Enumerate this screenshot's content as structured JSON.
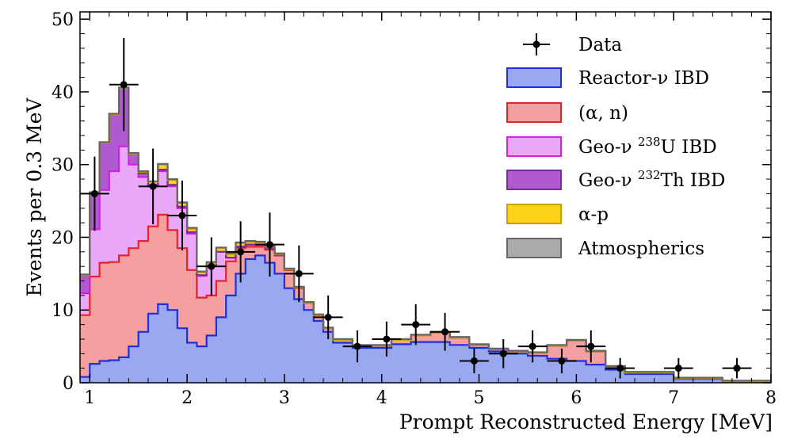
{
  "chart_data": {
    "type": "stacked-step-histogram",
    "title": "",
    "xlabel": "Prompt Reconstructed Energy [MeV]",
    "ylabel": "Events per 0.3 MeV",
    "xlim": [
      0.9,
      8.0
    ],
    "ylim": [
      0,
      51
    ],
    "x_ticks": [
      1,
      2,
      3,
      4,
      5,
      6,
      7,
      8
    ],
    "y_ticks": [
      0,
      10,
      20,
      30,
      40,
      50
    ],
    "legend_position": "top-right",
    "x_grid": [
      0.9,
      1.0,
      1.1,
      1.2,
      1.3,
      1.4,
      1.5,
      1.6,
      1.7,
      1.8,
      1.9,
      2.0,
      2.1,
      2.2,
      2.3,
      2.4,
      2.5,
      2.6,
      2.7,
      2.8,
      2.9,
      3.0,
      3.1,
      3.2,
      3.3,
      3.4,
      3.5,
      3.7,
      3.9,
      4.1,
      4.3,
      4.5,
      4.7,
      4.9,
      5.1,
      5.3,
      5.5,
      5.7,
      5.9,
      6.1,
      6.3,
      6.5,
      7.0,
      7.5,
      8.0
    ],
    "series": [
      {
        "name": "Reactor-ν IBD",
        "fill": "#9aa8f0",
        "edge": "#1f2fe0",
        "values": [
          0.8,
          2.6,
          3.0,
          3.1,
          3.5,
          5.0,
          7.0,
          9.5,
          10.8,
          10.0,
          7.5,
          5.5,
          5.0,
          6.5,
          9.0,
          12.0,
          15.0,
          17.0,
          17.5,
          16.5,
          15.0,
          13.0,
          11.5,
          10.0,
          8.5,
          7.0,
          5.5,
          4.8,
          4.8,
          5.3,
          5.6,
          5.6,
          5.2,
          4.8,
          4.3,
          4.0,
          3.7,
          3.3,
          3.0,
          2.5,
          1.8,
          1.2,
          0.5,
          0.15
        ]
      },
      {
        "name": "(α, n)",
        "fill": "#f5a0a0",
        "edge": "#e8202a",
        "values": [
          8.5,
          12.0,
          13.5,
          13.5,
          14.0,
          13.5,
          12.5,
          12.0,
          12.3,
          11.0,
          11.0,
          10.0,
          6.7,
          5.5,
          5.0,
          4.7,
          3.5,
          1.7,
          1.2,
          1.8,
          2.5,
          2.5,
          1.5,
          1.0,
          0.8,
          0.5,
          0.4,
          0.3,
          0.3,
          0.6,
          0.9,
          1.3,
          1.0,
          0.4,
          0.3,
          0.3,
          0.4,
          1.8,
          2.8,
          1.8,
          0.4,
          0.2,
          0.1,
          0.03
        ]
      },
      {
        "name": "Geo-ν ²³⁸U IBD",
        "fill": "#eaa8f8",
        "edge": "#d31ee8",
        "values": [
          3.0,
          6.5,
          10.0,
          12.5,
          15.0,
          11.5,
          8.8,
          5.5,
          6.0,
          6.0,
          5.5,
          5.0,
          3.0,
          4.0,
          4.0,
          0.5,
          0.2,
          0.3,
          0.3,
          0.2,
          0.1,
          0.1,
          0.1,
          0,
          0,
          0,
          0,
          0,
          0,
          0,
          0,
          0,
          0,
          0,
          0,
          0,
          0,
          0,
          0,
          0,
          0,
          0,
          0,
          0
        ]
      },
      {
        "name": "Geo-ν ²³²Th IBD",
        "fill": "#b05ad0",
        "edge": "#7a2a99",
        "values": [
          2.5,
          5.0,
          6.5,
          7.8,
          8.0,
          1.5,
          0.5,
          0.2,
          0.2,
          0.2,
          0.2,
          0.2,
          0.1,
          0.1,
          0,
          0,
          0,
          0,
          0,
          0,
          0,
          0,
          0,
          0,
          0,
          0,
          0,
          0,
          0,
          0,
          0,
          0,
          0,
          0,
          0,
          0,
          0,
          0,
          0,
          0,
          0,
          0,
          0,
          0
        ]
      },
      {
        "name": "α-p",
        "fill": "#ffd21a",
        "edge": "#c8a000",
        "values": [
          0,
          0,
          0,
          0,
          0,
          0,
          0.2,
          0.4,
          0.7,
          0.7,
          0.5,
          0.5,
          0.4,
          0.4,
          0.5,
          0.5,
          0.5,
          0.4,
          0.3,
          0.2,
          0.1,
          0,
          0,
          0,
          0,
          0,
          0,
          0,
          0,
          0,
          0,
          0,
          0,
          0,
          0,
          0,
          0,
          0,
          0,
          0,
          0,
          0,
          0,
          0
        ]
      },
      {
        "name": "Atmospherics",
        "fill": "#aaaaaa",
        "edge": "#666666",
        "values": [
          0.1,
          0.1,
          0.1,
          0.1,
          0.1,
          0.1,
          0.1,
          0.1,
          0.1,
          0.1,
          0.1,
          0.1,
          0.1,
          0.1,
          0.1,
          0.1,
          0.1,
          0.1,
          0.1,
          0.1,
          0.1,
          0.1,
          0.1,
          0.1,
          0.1,
          0.1,
          0.1,
          0.1,
          0.1,
          0.1,
          0.1,
          0.1,
          0.1,
          0.1,
          0.1,
          0.1,
          0.1,
          0.1,
          0.1,
          0.1,
          0.1,
          0.1,
          0.1,
          0.1
        ]
      }
    ],
    "data_points": {
      "name": "Data",
      "x": [
        1.05,
        1.35,
        1.65,
        1.95,
        2.25,
        2.55,
        2.85,
        3.15,
        3.45,
        3.75,
        4.05,
        4.35,
        4.65,
        4.95,
        5.25,
        5.55,
        5.85,
        6.15,
        6.45,
        7.05,
        7.65
      ],
      "y": [
        26,
        41,
        27,
        23,
        16,
        18,
        19,
        15,
        9,
        5,
        6,
        8,
        7,
        3,
        4,
        5,
        3,
        5,
        2,
        2,
        2
      ],
      "yerr": [
        5.1,
        6.4,
        5.2,
        4.8,
        4.0,
        4.2,
        4.4,
        3.9,
        3.0,
        2.2,
        2.4,
        2.8,
        2.6,
        1.7,
        2.0,
        2.2,
        1.7,
        2.2,
        1.4,
        1.4,
        1.4
      ],
      "xerr": [
        0.15,
        0.15,
        0.15,
        0.15,
        0.15,
        0.15,
        0.15,
        0.15,
        0.15,
        0.15,
        0.15,
        0.15,
        0.15,
        0.15,
        0.15,
        0.15,
        0.15,
        0.15,
        0.15,
        0.15,
        0.15
      ]
    },
    "legend": [
      {
        "key": "data",
        "label": "Data"
      },
      {
        "key": "s0",
        "label": "Reactor-ν IBD"
      },
      {
        "key": "s1",
        "label": "(α, n)"
      },
      {
        "key": "s2",
        "label": "Geo-ν 238U IBD"
      },
      {
        "key": "s3",
        "label": "Geo-ν 232Th IBD"
      },
      {
        "key": "s4",
        "label": "α-p"
      },
      {
        "key": "s5",
        "label": "Atmospherics"
      }
    ]
  }
}
